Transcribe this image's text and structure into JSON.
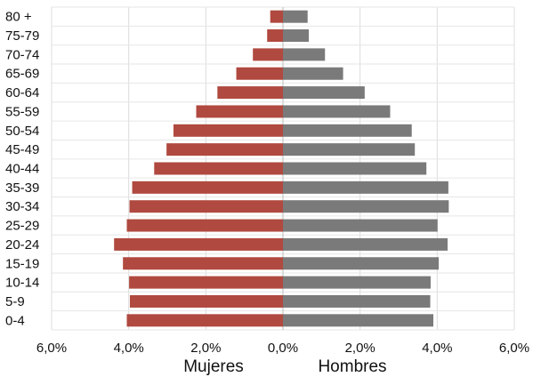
{
  "chart_data": {
    "type": "bar",
    "orientation": "horizontal-population-pyramid",
    "categories": [
      "80 +",
      "75-79",
      "70-74",
      "65-69",
      "60-64",
      "55-59",
      "50-54",
      "45-49",
      "40-44",
      "35-39",
      "30-34",
      "25-29",
      "20-24",
      "15-19",
      "10-14",
      "5-9",
      "0-4"
    ],
    "series": [
      {
        "name": "Mujeres",
        "color": "#b0493f",
        "values": [
          0.33,
          0.41,
          0.78,
          1.21,
          1.7,
          2.25,
          2.84,
          3.02,
          3.34,
          3.91,
          3.98,
          4.05,
          4.38,
          4.15,
          3.99,
          3.97,
          4.05
        ]
      },
      {
        "name": "Hombres",
        "color": "#7a7a7a",
        "values": [
          0.64,
          0.67,
          1.09,
          1.56,
          2.12,
          2.78,
          3.34,
          3.42,
          3.72,
          4.29,
          4.3,
          4.01,
          4.27,
          4.04,
          3.83,
          3.82,
          3.9
        ]
      }
    ],
    "xlim": [
      -6,
      6
    ],
    "xticks": [
      -6,
      -4,
      -2,
      0,
      2,
      4,
      6
    ],
    "xtick_labels": [
      "6,0%",
      "4,0%",
      "2,0%",
      "0,0%",
      "2,0%",
      "4,0%",
      "6,0%"
    ],
    "grid": true
  }
}
